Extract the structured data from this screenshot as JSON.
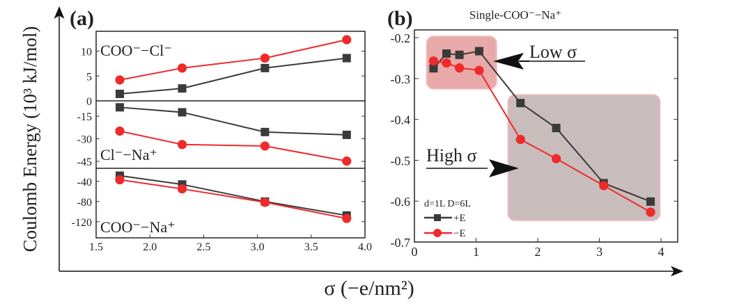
{
  "chart_data": [
    {
      "type": "line",
      "panel_label": "(a)",
      "xlim": [
        1.5,
        4.0
      ],
      "xticks": [
        1.5,
        2.0,
        2.5,
        3.0,
        3.5,
        4.0
      ],
      "x": [
        1.72,
        2.3,
        3.07,
        3.83
      ],
      "subplots": [
        {
          "label": "COO⁻−Cl⁻",
          "ylim": [
            0,
            14
          ],
          "yticks": [
            0,
            5,
            10
          ],
          "series": [
            {
              "name": "+E",
              "values": [
                1.4,
                2.5,
                6.6,
                8.6
              ]
            },
            {
              "name": "−E",
              "values": [
                4.2,
                6.6,
                8.6,
                12.3
              ]
            }
          ]
        },
        {
          "label": "Cl⁻−Na⁺",
          "ylim": [
            -49.6,
            -4.8
          ],
          "yticks": [
            -15,
            -30,
            -45
          ],
          "series": [
            {
              "name": "+E",
              "values": [
                -9.1,
                -12.4,
                -25.5,
                -27.4
              ]
            },
            {
              "name": "−E",
              "values": [
                -24.9,
                -33.8,
                -34.8,
                -44.8
              ]
            }
          ]
        },
        {
          "label": "COO⁻−Na⁺",
          "ylim": [
            -152,
            -14
          ],
          "yticks": [
            -40,
            -80,
            -120
          ],
          "series": [
            {
              "name": "+E",
              "values": [
                -28.6,
                -46,
                -80,
                -107.6
              ]
            },
            {
              "name": "−E",
              "values": [
                -36.8,
                -54.8,
                -81.4,
                -113.5
              ]
            }
          ]
        }
      ]
    },
    {
      "type": "line",
      "panel_label": "(b)",
      "title": "Single-COO⁻−Na⁺",
      "xlim": [
        0,
        4.27
      ],
      "ylim": [
        -0.7,
        -0.181
      ],
      "xticks": [
        0,
        1,
        2,
        3,
        4
      ],
      "yticks": [
        -0.2,
        -0.3,
        -0.4,
        -0.5,
        -0.6,
        -0.7
      ],
      "x": [
        0.31,
        0.52,
        0.73,
        1.05,
        1.72,
        2.3,
        3.07,
        3.83
      ],
      "series": [
        {
          "name": "+E",
          "values": [
            -0.275,
            -0.239,
            -0.242,
            -0.233,
            -0.36,
            -0.421,
            -0.556,
            -0.601
          ]
        },
        {
          "name": "−E",
          "values": [
            -0.257,
            -0.262,
            -0.274,
            -0.28,
            -0.449,
            -0.496,
            -0.562,
            -0.627
          ]
        }
      ],
      "legend_title": "d=1L D=6L",
      "legend_placement": "bottom-left",
      "regions": [
        {
          "label": "Low σ",
          "x": [
            0.2,
            1.33
          ],
          "y": [
            -0.197,
            -0.325
          ],
          "color": "#e8a9a9"
        },
        {
          "label": "High σ",
          "x": [
            1.52,
            3.98
          ],
          "y": [
            -0.34,
            -0.647
          ],
          "color": "#c9bcbc"
        }
      ]
    }
  ],
  "ylabel": "Coulomb Energy (10³ kJ/mol)",
  "xlabel": "σ (−e/nm²)",
  "colors": {
    "plus": "#3a3a3a",
    "minus": "#ee2a2a"
  }
}
